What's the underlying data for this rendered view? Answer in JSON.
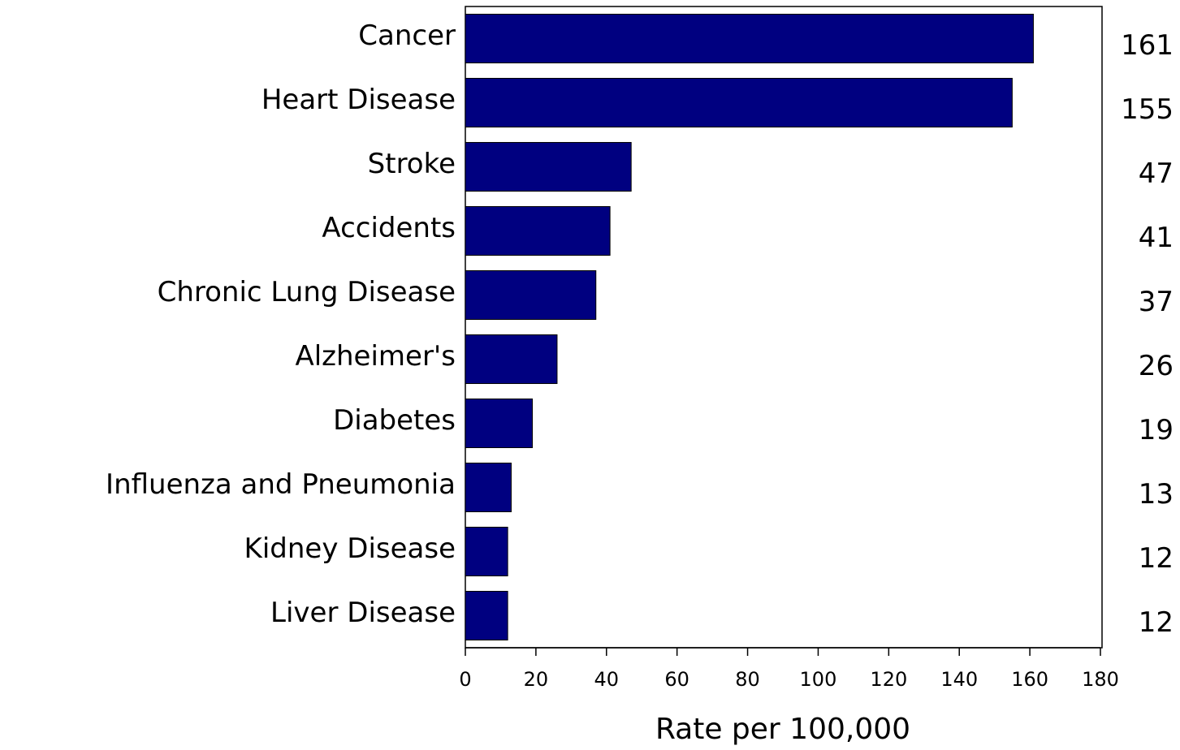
{
  "chart_data": {
    "type": "bar",
    "orientation": "horizontal",
    "x_label": "Rate per 100,000",
    "categories": [
      "Cancer",
      "Heart Disease",
      "Stroke",
      "Accidents",
      "Chronic Lung Disease",
      "Alzheimer's",
      "Diabetes",
      "Influenza and Pneumonia",
      "Kidney Disease",
      "Liver Disease"
    ],
    "values": [
      161,
      155,
      47,
      41,
      37,
      26,
      19,
      13,
      12,
      12
    ],
    "color": "#000080",
    "xlim": [
      0,
      180
    ],
    "xticks": [
      0,
      20,
      40,
      60,
      80,
      100,
      120,
      140,
      160,
      180
    ],
    "grid": false
  }
}
